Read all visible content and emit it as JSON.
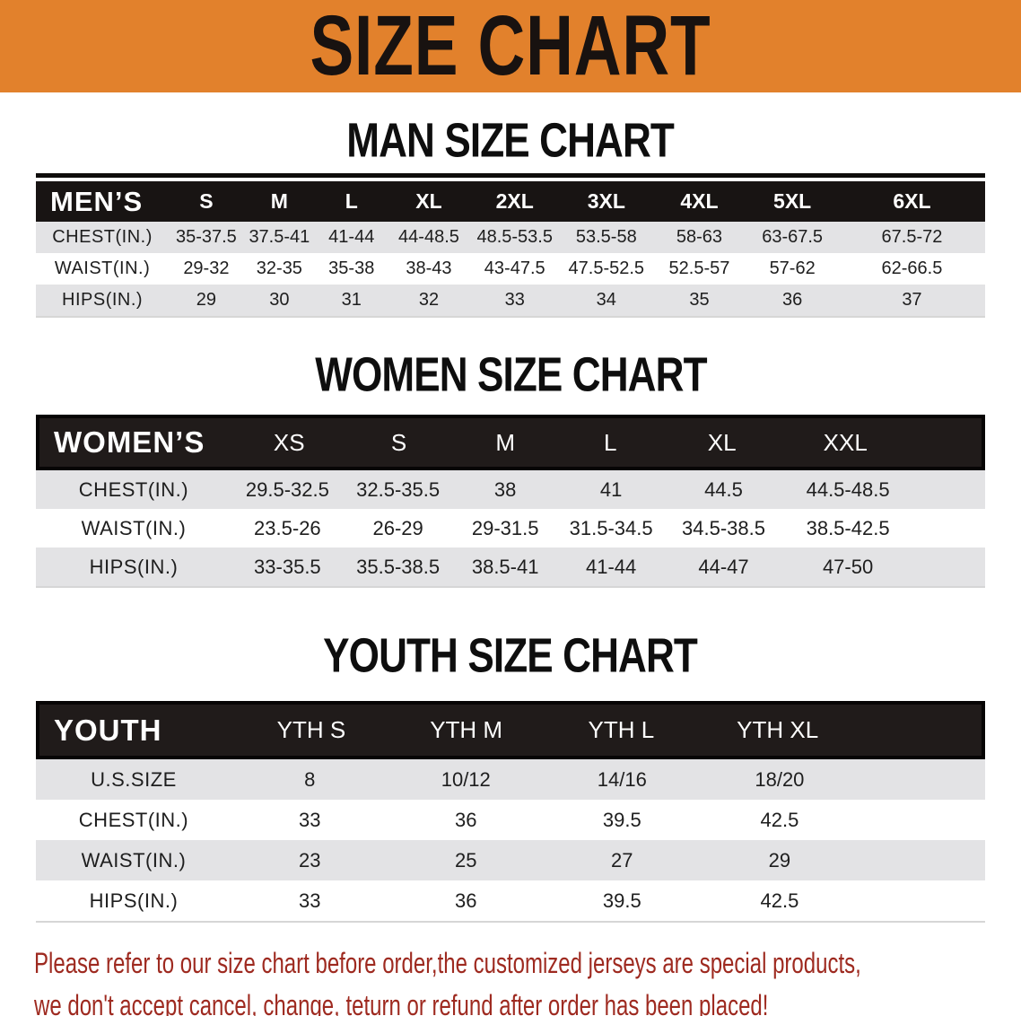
{
  "banner": {
    "title": "SIZE CHART"
  },
  "colors": {
    "banner_orange": "#E2812C",
    "table_header_black": "#181413",
    "row_gray": "#E3E3E5",
    "footer_red": "#9E2A20"
  },
  "sections": {
    "men": {
      "heading": "MAN SIZE CHART",
      "table": {
        "header": [
          "MEN’S",
          "S",
          "M",
          "L",
          "XL",
          "2XL",
          "3XL",
          "4XL",
          "5XL",
          "6XL"
        ],
        "rows": [
          {
            "label": "CHEST(IN.)",
            "values": [
              "35-37.5",
              "37.5-41",
              "41-44",
              "44-48.5",
              "48.5-53.5",
              "53.5-58",
              "58-63",
              "63-67.5",
              "67.5-72"
            ]
          },
          {
            "label": "WAIST(IN.)",
            "values": [
              "29-32",
              "32-35",
              "35-38",
              "38-43",
              "43-47.5",
              "47.5-52.5",
              "52.5-57",
              "57-62",
              "62-66.5"
            ]
          },
          {
            "label": "HIPS(IN.)",
            "values": [
              "29",
              "30",
              "31",
              "32",
              "33",
              "34",
              "35",
              "36",
              "37"
            ]
          }
        ]
      }
    },
    "women": {
      "heading": "WOMEN SIZE CHART",
      "table": {
        "header": [
          "WOMEN’S",
          "XS",
          "S",
          "M",
          "L",
          "XL",
          "XXL"
        ],
        "rows": [
          {
            "label": "CHEST(IN.)",
            "values": [
              "29.5-32.5",
              "32.5-35.5",
              "38",
              "41",
              "44.5",
              "44.5-48.5"
            ]
          },
          {
            "label": "WAIST(IN.)",
            "values": [
              "23.5-26",
              "26-29",
              "29-31.5",
              "31.5-34.5",
              "34.5-38.5",
              "38.5-42.5"
            ]
          },
          {
            "label": "HIPS(IN.)",
            "values": [
              "33-35.5",
              "35.5-38.5",
              "38.5-41",
              "41-44",
              "44-47",
              "47-50"
            ]
          }
        ]
      }
    },
    "youth": {
      "heading": "YOUTH SIZE CHART",
      "table": {
        "header": [
          "YOUTH",
          "YTH S",
          "YTH M",
          "YTH L",
          "YTH XL"
        ],
        "rows": [
          {
            "label": "U.S.SIZE",
            "values": [
              "8",
              "10/12",
              "14/16",
              "18/20"
            ]
          },
          {
            "label": "CHEST(IN.)",
            "values": [
              "33",
              "36",
              "39.5",
              "42.5"
            ]
          },
          {
            "label": "WAIST(IN.)",
            "values": [
              "23",
              "25",
              "27",
              "29"
            ]
          },
          {
            "label": "HIPS(IN.)",
            "values": [
              "33",
              "36",
              "39.5",
              "42.5"
            ]
          }
        ]
      }
    }
  },
  "footer": {
    "line1": "Please refer to our size chart before order,the customized jerseys are special products,",
    "line2": "we don't accept cancel, change, teturn or refund after order has been placed!"
  }
}
